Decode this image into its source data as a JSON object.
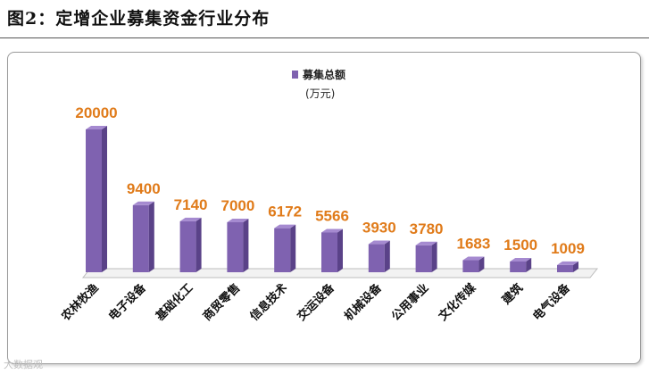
{
  "figure_title": "图2：定增企业募集资金行业分布",
  "watermark": "大数据观",
  "chart_data": {
    "type": "bar",
    "categories": [
      "农林牧渔",
      "电子设备",
      "基础化工",
      "商贸零售",
      "信息技术",
      "交运设备",
      "机械设备",
      "公用事业",
      "文化传媒",
      "建筑",
      "电气设备"
    ],
    "series": [
      {
        "name": "募集总额",
        "values": [
          20000,
          9400,
          7140,
          7000,
          6172,
          5566,
          3930,
          3780,
          1683,
          1500,
          1009
        ]
      }
    ],
    "unit_label": "(万元)",
    "legend_position": "top-center",
    "ylim": [
      0,
      20000
    ],
    "grid": false,
    "colors": {
      "bar_front": "#7f62b0",
      "bar_side": "#5a4288",
      "bar_top": "#a58ad0",
      "value_label": "#e07b1a"
    }
  }
}
